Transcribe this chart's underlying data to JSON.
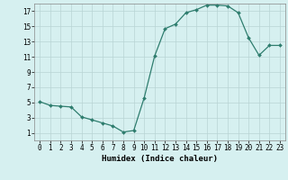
{
  "x": [
    0,
    1,
    2,
    3,
    4,
    5,
    6,
    7,
    8,
    9,
    10,
    11,
    12,
    13,
    14,
    15,
    16,
    17,
    18,
    19,
    20,
    21,
    22,
    23
  ],
  "y": [
    5.1,
    4.6,
    4.5,
    4.4,
    3.1,
    2.7,
    2.3,
    1.9,
    1.1,
    1.3,
    5.6,
    11.1,
    14.7,
    15.3,
    16.8,
    17.2,
    17.8,
    17.8,
    17.7,
    16.8,
    13.5,
    11.2,
    12.5,
    12.5
  ],
  "line_color": "#2e7d6e",
  "marker": "D",
  "marker_size": 2.0,
  "bg_color": "#d6f0f0",
  "grid_color": "#b8d4d4",
  "xlabel": "Humidex (Indice chaleur)",
  "xlim": [
    -0.5,
    23.5
  ],
  "ylim": [
    0,
    18
  ],
  "yticks": [
    1,
    3,
    5,
    7,
    9,
    11,
    13,
    15,
    17
  ],
  "xticks": [
    0,
    1,
    2,
    3,
    4,
    5,
    6,
    7,
    8,
    9,
    10,
    11,
    12,
    13,
    14,
    15,
    16,
    17,
    18,
    19,
    20,
    21,
    22,
    23
  ],
  "xlabel_fontsize": 6.5,
  "tick_fontsize": 5.5
}
